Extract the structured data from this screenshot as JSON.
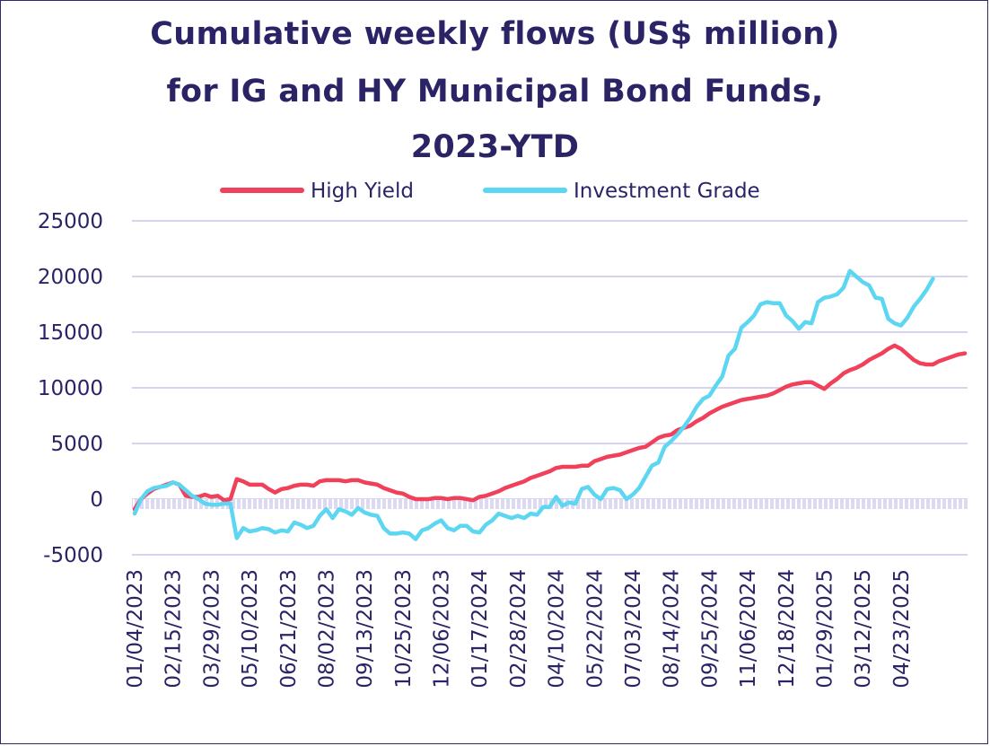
{
  "chart_data": {
    "type": "line",
    "title_lines": [
      "Cumulative weekly flows (US$ million)",
      "for IG and HY Municipal Bond Funds,",
      "2023-YTD"
    ],
    "ylim": [
      -5000,
      25000
    ],
    "y_ticks": [
      -5000,
      0,
      5000,
      10000,
      15000,
      20000,
      25000
    ],
    "y_tick_labels": [
      "-5000",
      "0",
      "5000",
      "10000",
      "15000",
      "20000",
      "25000"
    ],
    "x_tick_labels": [
      "01/04/2023",
      "02/15/2023",
      "03/29/2023",
      "05/10/2023",
      "06/21/2023",
      "08/02/2023",
      "09/13/2023",
      "10/25/2023",
      "12/06/2023",
      "01/17/2024",
      "02/28/2024",
      "04/10/2024",
      "05/22/2024",
      "07/03/2024",
      "08/14/2024",
      "09/25/2024",
      "11/06/2024",
      "12/18/2024",
      "01/29/2025",
      "03/12/2025",
      "04/23/2025"
    ],
    "x_tick_index": [
      0,
      6,
      12,
      18,
      24,
      30,
      36,
      42,
      48,
      54,
      60,
      66,
      72,
      78,
      84,
      90,
      96,
      102,
      108,
      114,
      120
    ],
    "grid": true,
    "legend": "top",
    "series": [
      {
        "name": "High Yield",
        "color": "#f0405a",
        "values": [
          -900,
          0,
          500,
          900,
          1100,
          1300,
          1500,
          1300,
          300,
          200,
          200,
          400,
          200,
          300,
          -100,
          0,
          1800,
          1600,
          1300,
          1300,
          1300,
          900,
          600,
          900,
          1000,
          1200,
          1300,
          1300,
          1200,
          1600,
          1700,
          1700,
          1700,
          1600,
          1700,
          1700,
          1500,
          1400,
          1300,
          1000,
          800,
          600,
          500,
          200,
          0,
          0,
          0,
          100,
          100,
          0,
          100,
          100,
          0,
          -100,
          200,
          300,
          500,
          700,
          1000,
          1200,
          1400,
          1600,
          1900,
          2100,
          2300,
          2500,
          2800,
          2900,
          2900,
          2900,
          3000,
          3000,
          3400,
          3600,
          3800,
          3900,
          4000,
          4200,
          4400,
          4600,
          4700,
          5100,
          5500,
          5700,
          5800,
          6200,
          6400,
          6600,
          7000,
          7300,
          7700,
          8000,
          8300,
          8500,
          8700,
          8900,
          9000,
          9100,
          9200,
          9300,
          9500,
          9800,
          10100,
          10300,
          10400,
          10500,
          10500,
          10200,
          9900,
          10400,
          10800,
          11300,
          11600,
          11800,
          12100,
          12500,
          12800,
          13100,
          13500,
          13800,
          13500,
          13000,
          12500,
          12200,
          12100,
          12100,
          12400,
          12600,
          12800,
          13000,
          13100
        ]
      },
      {
        "name": "Investment Grade",
        "color": "#5dd6f2",
        "values": [
          -1300,
          0,
          700,
          1000,
          1100,
          1200,
          1500,
          1300,
          800,
          300,
          0,
          -400,
          -500,
          -500,
          -400,
          -400,
          -3500,
          -2600,
          -2900,
          -2800,
          -2600,
          -2700,
          -3000,
          -2800,
          -2900,
          -2100,
          -2300,
          -2600,
          -2400,
          -1500,
          -900,
          -1700,
          -900,
          -1100,
          -1400,
          -800,
          -1200,
          -1400,
          -1500,
          -2600,
          -3100,
          -3100,
          -3000,
          -3100,
          -3600,
          -2800,
          -2600,
          -2200,
          -1900,
          -2600,
          -2800,
          -2400,
          -2400,
          -2900,
          -3000,
          -2300,
          -1900,
          -1300,
          -1500,
          -1700,
          -1500,
          -1700,
          -1300,
          -1400,
          -700,
          -700,
          200,
          -600,
          -300,
          -400,
          900,
          1100,
          400,
          0,
          900,
          1000,
          800,
          0,
          400,
          1000,
          2000,
          3000,
          3300,
          4700,
          5200,
          5800,
          6500,
          7300,
          8300,
          9000,
          9300,
          10200,
          11000,
          12900,
          13500,
          15400,
          15900,
          16500,
          17500,
          17700,
          17600,
          17600,
          16500,
          16000,
          15300,
          15900,
          15800,
          17700,
          18100,
          18200,
          18400,
          19000,
          20500,
          20000,
          19500,
          19200,
          18100,
          18000,
          16200,
          15800,
          15600,
          16300,
          17300,
          18000,
          18800,
          19800
        ]
      }
    ]
  }
}
